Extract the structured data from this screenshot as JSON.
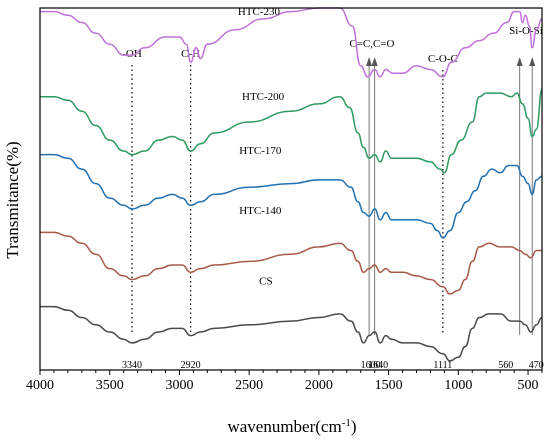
{
  "chart_data": {
    "type": "line",
    "xlabel": "wavenumber(cm",
    "xlabel_sup": "-1",
    "xlabel_suffix": ")",
    "ylabel": "Transmitance(%)",
    "xlim": [
      4000,
      400
    ],
    "x_reversed": true,
    "yticks_visible": false,
    "xticks": [
      4000,
      3500,
      3000,
      2500,
      2000,
      1500,
      1000,
      500
    ],
    "series": [
      {
        "name": "HTC-230",
        "color": "#bf72d8",
        "offset": 0.87,
        "label_x": 2430,
        "points": [
          [
            4000,
            0.12
          ],
          [
            3900,
            0.12
          ],
          [
            3800,
            0.11
          ],
          [
            3700,
            0.09
          ],
          [
            3600,
            0.06
          ],
          [
            3500,
            0.03
          ],
          [
            3400,
            0.0
          ],
          [
            3340,
            0.0
          ],
          [
            3250,
            0.02
          ],
          [
            3100,
            0.05
          ],
          [
            3000,
            0.05
          ],
          [
            2950,
            0.03
          ],
          [
            2920,
            -0.02
          ],
          [
            2880,
            0.02
          ],
          [
            2850,
            -0.01
          ],
          [
            2800,
            0.03
          ],
          [
            2600,
            0.07
          ],
          [
            2400,
            0.1
          ],
          [
            2200,
            0.12
          ],
          [
            2000,
            0.13
          ],
          [
            1850,
            0.13
          ],
          [
            1760,
            0.08
          ],
          [
            1700,
            -0.03
          ],
          [
            1650,
            -0.06
          ],
          [
            1600,
            -0.04
          ],
          [
            1560,
            -0.06
          ],
          [
            1520,
            -0.04
          ],
          [
            1470,
            -0.05
          ],
          [
            1400,
            -0.05
          ],
          [
            1300,
            -0.03
          ],
          [
            1200,
            -0.04
          ],
          [
            1111,
            -0.06
          ],
          [
            1050,
            -0.02
          ],
          [
            950,
            0.02
          ],
          [
            850,
            0.04
          ],
          [
            750,
            0.06
          ],
          [
            650,
            0.09
          ],
          [
            600,
            0.12
          ],
          [
            560,
            0.12
          ],
          [
            540,
            0.09
          ],
          [
            520,
            0.11
          ],
          [
            490,
            0.08
          ],
          [
            470,
            0.02
          ],
          [
            440,
            0.07
          ],
          [
            400,
            0.1
          ]
        ]
      },
      {
        "name": "HTC-200",
        "color": "#2e9b63",
        "offset": 0.635,
        "label_x": 2400,
        "points": [
          [
            4000,
            0.12
          ],
          [
            3900,
            0.12
          ],
          [
            3800,
            0.11
          ],
          [
            3700,
            0.08
          ],
          [
            3600,
            0.04
          ],
          [
            3500,
            0.0
          ],
          [
            3400,
            -0.03
          ],
          [
            3340,
            -0.04
          ],
          [
            3250,
            -0.03
          ],
          [
            3150,
            0.0
          ],
          [
            3050,
            0.01
          ],
          [
            2980,
            0.0
          ],
          [
            2920,
            -0.03
          ],
          [
            2850,
            -0.01
          ],
          [
            2750,
            0.02
          ],
          [
            2500,
            0.05
          ],
          [
            2200,
            0.08
          ],
          [
            2000,
            0.1
          ],
          [
            1850,
            0.12
          ],
          [
            1780,
            0.09
          ],
          [
            1720,
            0.02
          ],
          [
            1680,
            -0.02
          ],
          [
            1640,
            -0.05
          ],
          [
            1600,
            -0.04
          ],
          [
            1560,
            -0.06
          ],
          [
            1520,
            -0.03
          ],
          [
            1480,
            -0.05
          ],
          [
            1400,
            -0.05
          ],
          [
            1300,
            -0.05
          ],
          [
            1200,
            -0.06
          ],
          [
            1130,
            -0.08
          ],
          [
            1100,
            -0.09
          ],
          [
            1050,
            -0.04
          ],
          [
            980,
            0.0
          ],
          [
            900,
            0.05
          ],
          [
            850,
            0.12
          ],
          [
            800,
            0.13
          ],
          [
            700,
            0.13
          ],
          [
            620,
            0.12
          ],
          [
            580,
            0.13
          ],
          [
            540,
            0.1
          ],
          [
            500,
            0.06
          ],
          [
            470,
            0.01
          ],
          [
            440,
            0.03
          ],
          [
            400,
            0.14
          ]
        ]
      },
      {
        "name": "HTC-170",
        "color": "#2271b3",
        "offset": 0.485,
        "label_x": 2420,
        "points": [
          [
            4000,
            0.11
          ],
          [
            3900,
            0.11
          ],
          [
            3800,
            0.1
          ],
          [
            3700,
            0.07
          ],
          [
            3600,
            0.03
          ],
          [
            3500,
            -0.01
          ],
          [
            3400,
            -0.03
          ],
          [
            3340,
            -0.04
          ],
          [
            3250,
            -0.03
          ],
          [
            3150,
            -0.01
          ],
          [
            3050,
            0.0
          ],
          [
            2980,
            -0.01
          ],
          [
            2920,
            -0.03
          ],
          [
            2850,
            -0.02
          ],
          [
            2750,
            0.0
          ],
          [
            2500,
            0.02
          ],
          [
            2200,
            0.03
          ],
          [
            2000,
            0.04
          ],
          [
            1850,
            0.04
          ],
          [
            1770,
            0.02
          ],
          [
            1720,
            -0.02
          ],
          [
            1680,
            -0.05
          ],
          [
            1640,
            -0.06
          ],
          [
            1600,
            -0.04
          ],
          [
            1560,
            -0.07
          ],
          [
            1520,
            -0.05
          ],
          [
            1480,
            -0.07
          ],
          [
            1400,
            -0.07
          ],
          [
            1300,
            -0.07
          ],
          [
            1200,
            -0.08
          ],
          [
            1150,
            -0.1
          ],
          [
            1111,
            -0.12
          ],
          [
            1060,
            -0.1
          ],
          [
            1000,
            -0.05
          ],
          [
            940,
            -0.02
          ],
          [
            880,
            0.01
          ],
          [
            820,
            0.05
          ],
          [
            760,
            0.07
          ],
          [
            700,
            0.06
          ],
          [
            640,
            0.08
          ],
          [
            580,
            0.08
          ],
          [
            540,
            0.05
          ],
          [
            500,
            0.03
          ],
          [
            470,
            0.0
          ],
          [
            440,
            0.04
          ],
          [
            400,
            0.05
          ]
        ]
      },
      {
        "name": "HTC-140",
        "color": "#a85a46",
        "offset": 0.32,
        "label_x": 2420,
        "points": [
          [
            4000,
            0.06
          ],
          [
            3900,
            0.06
          ],
          [
            3800,
            0.05
          ],
          [
            3700,
            0.03
          ],
          [
            3600,
            0.0
          ],
          [
            3500,
            -0.04
          ],
          [
            3400,
            -0.06
          ],
          [
            3340,
            -0.07
          ],
          [
            3250,
            -0.06
          ],
          [
            3150,
            -0.04
          ],
          [
            3050,
            -0.03
          ],
          [
            2980,
            -0.03
          ],
          [
            2920,
            -0.05
          ],
          [
            2850,
            -0.04
          ],
          [
            2750,
            -0.03
          ],
          [
            2500,
            -0.02
          ],
          [
            2200,
            0.0
          ],
          [
            2000,
            0.02
          ],
          [
            1850,
            0.03
          ],
          [
            1770,
            0.01
          ],
          [
            1720,
            -0.02
          ],
          [
            1680,
            -0.05
          ],
          [
            1640,
            -0.04
          ],
          [
            1600,
            -0.03
          ],
          [
            1560,
            -0.05
          ],
          [
            1520,
            -0.04
          ],
          [
            1480,
            -0.05
          ],
          [
            1400,
            -0.05
          ],
          [
            1300,
            -0.06
          ],
          [
            1200,
            -0.07
          ],
          [
            1111,
            -0.09
          ],
          [
            1060,
            -0.11
          ],
          [
            1000,
            -0.1
          ],
          [
            950,
            -0.07
          ],
          [
            900,
            -0.02
          ],
          [
            850,
            0.02
          ],
          [
            780,
            0.03
          ],
          [
            700,
            0.02
          ],
          [
            620,
            0.02
          ],
          [
            560,
            0.01
          ],
          [
            520,
            0.0
          ],
          [
            480,
            -0.01
          ],
          [
            440,
            0.01
          ],
          [
            400,
            0.01
          ]
        ]
      },
      {
        "name": "CS",
        "color": "#4a4a4a",
        "offset": 0.125,
        "label_x": 2380,
        "points": [
          [
            4000,
            0.05
          ],
          [
            3900,
            0.05
          ],
          [
            3800,
            0.04
          ],
          [
            3700,
            0.02
          ],
          [
            3600,
            0.0
          ],
          [
            3500,
            -0.02
          ],
          [
            3400,
            -0.04
          ],
          [
            3340,
            -0.05
          ],
          [
            3250,
            -0.04
          ],
          [
            3150,
            -0.02
          ],
          [
            3050,
            -0.01
          ],
          [
            2980,
            -0.01
          ],
          [
            2920,
            -0.03
          ],
          [
            2850,
            -0.02
          ],
          [
            2750,
            -0.01
          ],
          [
            2500,
            0.0
          ],
          [
            2200,
            0.01
          ],
          [
            2000,
            0.02
          ],
          [
            1850,
            0.03
          ],
          [
            1770,
            0.01
          ],
          [
            1720,
            -0.02
          ],
          [
            1680,
            -0.05
          ],
          [
            1640,
            -0.03
          ],
          [
            1600,
            -0.02
          ],
          [
            1560,
            -0.05
          ],
          [
            1520,
            -0.03
          ],
          [
            1480,
            -0.04
          ],
          [
            1400,
            -0.05
          ],
          [
            1300,
            -0.05
          ],
          [
            1200,
            -0.06
          ],
          [
            1111,
            -0.08
          ],
          [
            1060,
            -0.1
          ],
          [
            1000,
            -0.09
          ],
          [
            950,
            -0.06
          ],
          [
            900,
            -0.01
          ],
          [
            850,
            0.02
          ],
          [
            780,
            0.03
          ],
          [
            700,
            0.03
          ],
          [
            620,
            0.01
          ],
          [
            560,
            0.01
          ],
          [
            520,
            0.0
          ],
          [
            480,
            -0.02
          ],
          [
            440,
            0.0
          ],
          [
            400,
            0.02
          ]
        ]
      }
    ],
    "peaks": [
      {
        "x": 3340,
        "label": "-OH",
        "value": "3340",
        "style": "dotted"
      },
      {
        "x": 2920,
        "label": "C-H",
        "value": "2920",
        "style": "dotted"
      },
      {
        "x": 1640,
        "label": "",
        "value": "1640",
        "style": "arrow"
      },
      {
        "x": 1600,
        "label": "",
        "value": "1600",
        "style": "arrow"
      },
      {
        "x": 1111,
        "label": "C-O-C",
        "value": "1111",
        "style": "dotted"
      },
      {
        "x": 560,
        "label": "",
        "value": "560",
        "style": "arrow"
      },
      {
        "x": 470,
        "label": "",
        "value": "470",
        "style": "arrow"
      }
    ],
    "group_labels": [
      {
        "text": "C=C,C=O"
      },
      {
        "text": "Si-O-Si"
      }
    ]
  }
}
